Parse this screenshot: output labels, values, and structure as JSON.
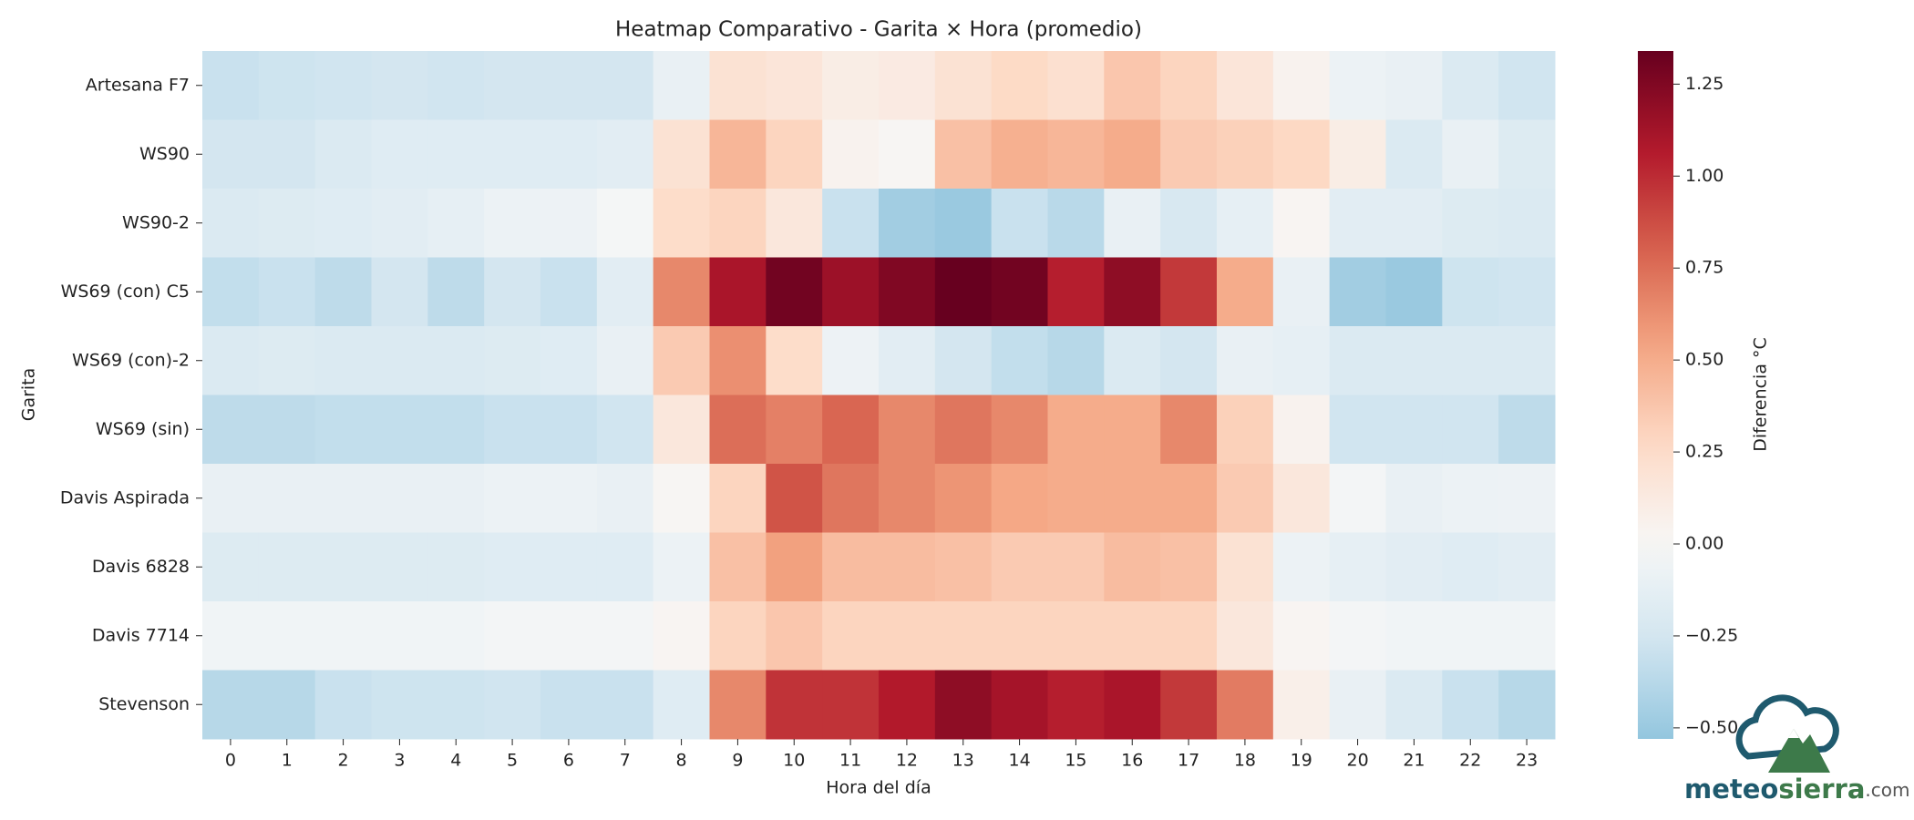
{
  "chart_data": {
    "type": "heatmap",
    "title": "Heatmap Comparativo - Garita × Hora (promedio)",
    "x_label": "Hora del día",
    "y_label": "Garita",
    "colorbar_label": "Diferencia °C",
    "categories": [
      "0",
      "1",
      "2",
      "3",
      "4",
      "5",
      "6",
      "7",
      "8",
      "9",
      "10",
      "11",
      "12",
      "13",
      "14",
      "15",
      "16",
      "17",
      "18",
      "19",
      "20",
      "21",
      "22",
      "23"
    ],
    "rows": [
      "Artesana F7",
      "WS90",
      "WS90-2",
      "WS69 (con) C5",
      "WS69 (con)-2",
      "WS69 (sin)",
      "Davis Aspirada",
      "Davis 6828",
      "Davis 7714",
      "Stevenson"
    ],
    "values": [
      [
        -0.3,
        -0.28,
        -0.27,
        -0.25,
        -0.27,
        -0.25,
        -0.25,
        -0.25,
        -0.1,
        0.2,
        0.17,
        0.1,
        0.12,
        0.2,
        0.27,
        0.22,
        0.37,
        0.3,
        0.17,
        0.05,
        -0.08,
        -0.1,
        -0.2,
        -0.27
      ],
      [
        -0.25,
        -0.25,
        -0.2,
        -0.17,
        -0.17,
        -0.17,
        -0.17,
        -0.15,
        0.2,
        0.45,
        0.3,
        0.05,
        0.02,
        0.4,
        0.48,
        0.45,
        0.5,
        0.35,
        0.32,
        0.28,
        0.1,
        -0.2,
        -0.1,
        -0.18
      ],
      [
        -0.2,
        -0.18,
        -0.17,
        -0.15,
        -0.12,
        -0.08,
        -0.07,
        -0.02,
        0.25,
        0.3,
        0.15,
        -0.3,
        -0.47,
        -0.5,
        -0.3,
        -0.37,
        -0.1,
        -0.22,
        -0.12,
        0.03,
        -0.15,
        -0.15,
        -0.18,
        -0.2
      ],
      [
        -0.33,
        -0.3,
        -0.35,
        -0.25,
        -0.35,
        -0.25,
        -0.3,
        -0.15,
        0.65,
        1.1,
        1.3,
        1.15,
        1.25,
        1.34,
        1.3,
        1.05,
        1.2,
        0.95,
        0.5,
        -0.1,
        -0.47,
        -0.5,
        -0.28,
        -0.27
      ],
      [
        -0.2,
        -0.18,
        -0.2,
        -0.2,
        -0.2,
        -0.18,
        -0.17,
        -0.1,
        0.35,
        0.62,
        0.25,
        -0.07,
        -0.15,
        -0.25,
        -0.33,
        -0.38,
        -0.2,
        -0.25,
        -0.1,
        -0.12,
        -0.2,
        -0.2,
        -0.2,
        -0.2
      ],
      [
        -0.35,
        -0.35,
        -0.33,
        -0.33,
        -0.33,
        -0.3,
        -0.3,
        -0.27,
        0.15,
        0.75,
        0.68,
        0.78,
        0.65,
        0.72,
        0.65,
        0.5,
        0.5,
        0.65,
        0.32,
        0.05,
        -0.27,
        -0.27,
        -0.27,
        -0.35
      ],
      [
        -0.1,
        -0.1,
        -0.1,
        -0.1,
        -0.1,
        -0.08,
        -0.08,
        -0.1,
        0.02,
        0.3,
        0.85,
        0.72,
        0.65,
        0.6,
        0.52,
        0.5,
        0.5,
        0.5,
        0.35,
        0.15,
        -0.03,
        -0.1,
        -0.08,
        -0.07
      ],
      [
        -0.18,
        -0.18,
        -0.18,
        -0.18,
        -0.18,
        -0.17,
        -0.17,
        -0.17,
        -0.08,
        0.4,
        0.55,
        0.42,
        0.42,
        0.4,
        0.35,
        0.35,
        0.42,
        0.4,
        0.2,
        -0.08,
        -0.12,
        -0.15,
        -0.17,
        -0.15
      ],
      [
        -0.05,
        -0.05,
        -0.05,
        -0.05,
        -0.05,
        -0.03,
        -0.03,
        -0.03,
        0.03,
        0.3,
        0.37,
        0.3,
        0.3,
        0.3,
        0.3,
        0.3,
        0.3,
        0.3,
        0.15,
        0.03,
        -0.03,
        -0.05,
        -0.05,
        -0.05
      ],
      [
        -0.38,
        -0.38,
        -0.3,
        -0.28,
        -0.28,
        -0.27,
        -0.3,
        -0.3,
        -0.17,
        0.65,
        0.97,
        0.97,
        1.07,
        1.2,
        1.12,
        1.05,
        1.1,
        0.95,
        0.7,
        0.08,
        -0.1,
        -0.2,
        -0.3,
        -0.38
      ]
    ],
    "colormap": "RdBu_r",
    "center": 0,
    "zlim": [
      -0.53,
      1.34
    ],
    "zticks": [
      {
        "value": -0.5,
        "label": "−0.50"
      },
      {
        "value": -0.25,
        "label": "−0.25"
      },
      {
        "value": 0,
        "label": "0.00"
      },
      {
        "value": 0.25,
        "label": "0.25"
      },
      {
        "value": 0.5,
        "label": "0.50"
      },
      {
        "value": 0.75,
        "label": "0.75"
      },
      {
        "value": 1,
        "label": "1.00"
      },
      {
        "value": 1.25,
        "label": "1.25"
      }
    ]
  },
  "watermark": {
    "brand_a": "meteo",
    "brand_b": "sierra",
    "domain": ".com"
  }
}
